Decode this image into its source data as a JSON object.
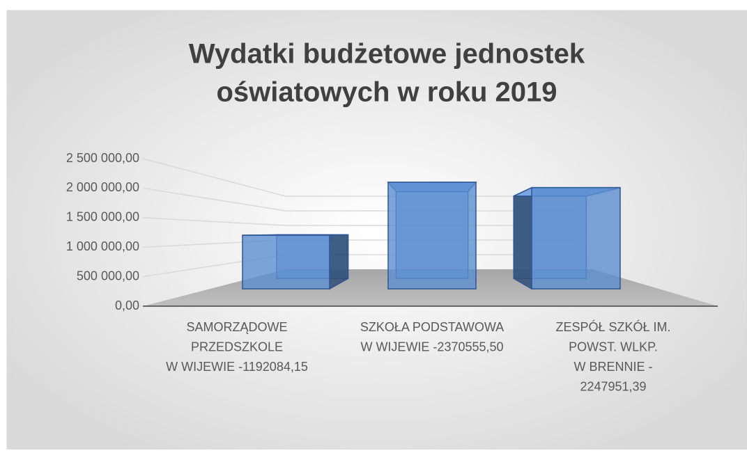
{
  "chart_data": {
    "type": "bar3d",
    "title": [
      "Wydatki budżetowe jednostek",
      "oświatowych w roku 2019"
    ],
    "categories": [
      [
        "SAMORZĄDOWE",
        "PRZEDSZKOLE",
        "W WIJEWIE -1192084,15"
      ],
      [
        "SZKOŁA  PODSTAWOWA",
        "W WIJEWIE -2370555,50"
      ],
      [
        "ZESPÓŁ SZKÓŁ IM.",
        "POWST. WLKP.",
        "W BRENNIE  -",
        "2247951,39"
      ]
    ],
    "values": [
      1192084.15,
      2370555.5,
      2247951.39
    ],
    "color": "#5b8fd1",
    "ylim": [
      0,
      2500000
    ],
    "yticks": [
      {
        "value": 0,
        "label": "0,00"
      },
      {
        "value": 500000,
        "label": "500 000,00"
      },
      {
        "value": 1000000,
        "label": "1 000 000,00"
      },
      {
        "value": 1500000,
        "label": "1 500 000,00"
      },
      {
        "value": 2000000,
        "label": "2 000 000,00"
      },
      {
        "value": 2500000,
        "label": "2 500 000,00"
      }
    ],
    "grid": true
  }
}
